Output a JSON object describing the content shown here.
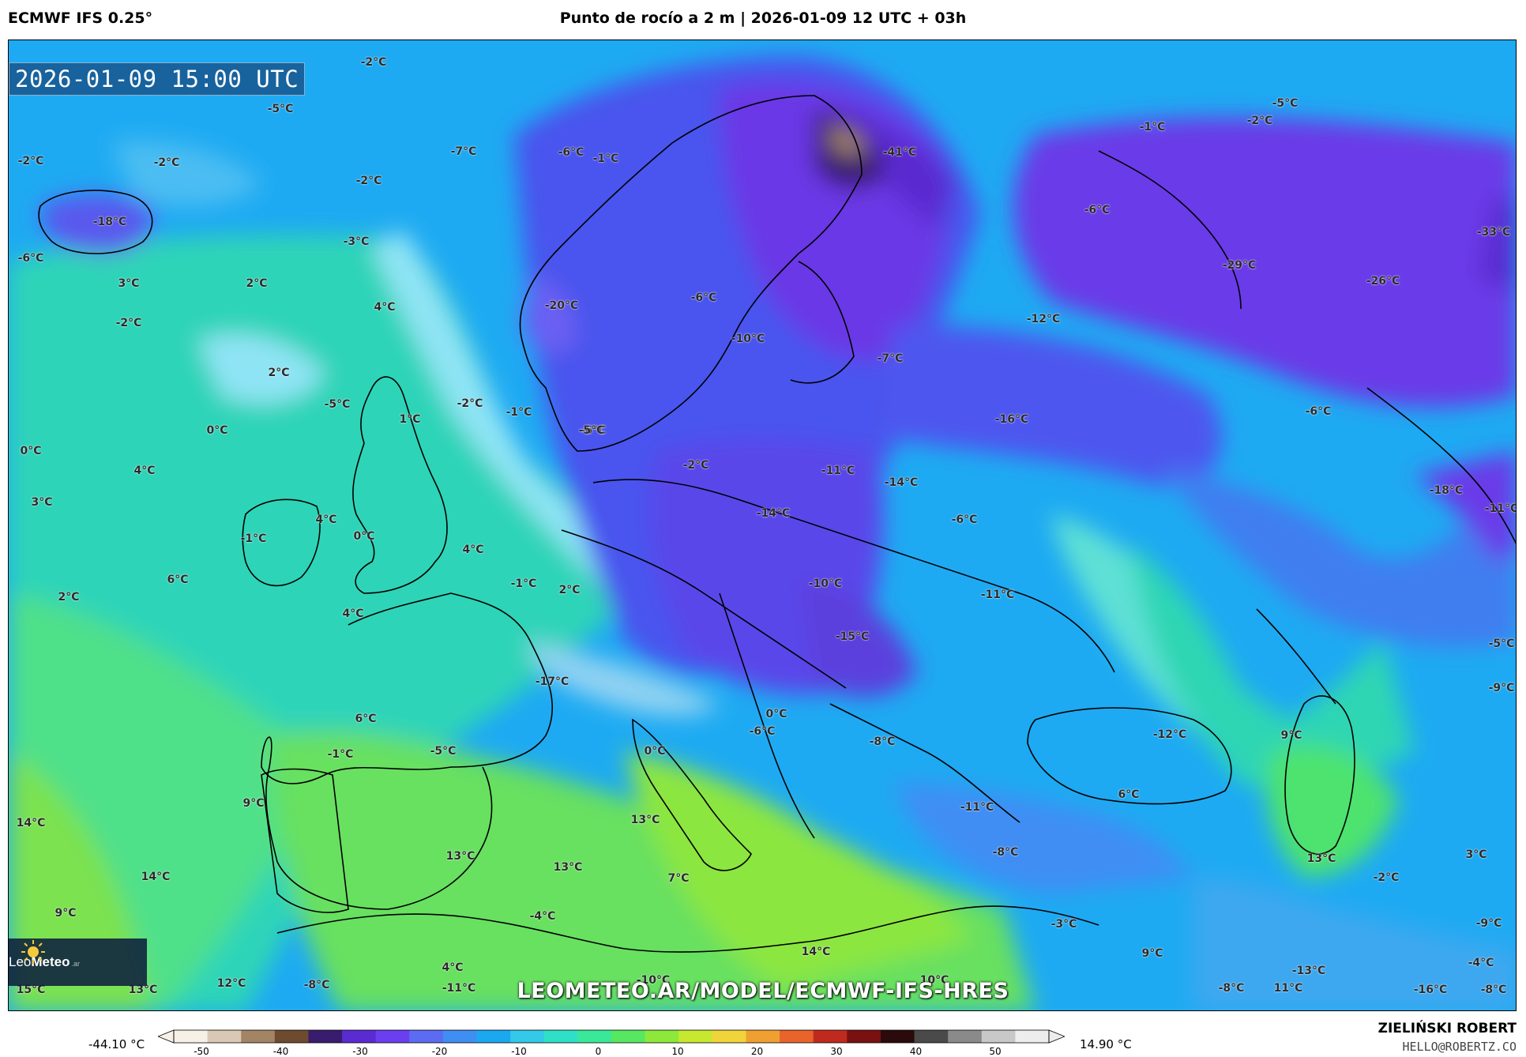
{
  "header": {
    "model": "ECMWF IFS 0.25°",
    "title": "Punto de rocío a 2 m | 2026-01-09 12 UTC + 03h"
  },
  "map": {
    "valid_time": "2026-01-09 15:00 UTC",
    "url": "LEOMETEO.AR/MODEL/ECMWF-IFS-HRES",
    "labels": [
      {
        "text": "-2°C"
      },
      {
        "text": "-5°C"
      },
      {
        "text": "-2°C"
      },
      {
        "text": "-2°C"
      },
      {
        "text": "-18°C"
      },
      {
        "text": "-6°C"
      },
      {
        "text": "-2°C"
      },
      {
        "text": "-3°C"
      },
      {
        "text": "-7°C"
      },
      {
        "text": "-6°C"
      },
      {
        "text": "-1°C"
      },
      {
        "text": "-41°C"
      },
      {
        "text": "-1°C"
      },
      {
        "text": "-2°C"
      },
      {
        "text": "-5°C"
      },
      {
        "text": "-6°C"
      },
      {
        "text": "-33°C"
      },
      {
        "text": "-29°C"
      },
      {
        "text": "-26°C"
      },
      {
        "text": "-12°C"
      },
      {
        "text": "3°C"
      },
      {
        "text": "2°C"
      },
      {
        "text": "4°C"
      },
      {
        "text": "-2°C"
      },
      {
        "text": "-20°C"
      },
      {
        "text": "-6°C"
      },
      {
        "text": "-10°C"
      },
      {
        "text": "-7°C"
      },
      {
        "text": "2°C"
      },
      {
        "text": "-5°C"
      },
      {
        "text": "1°C"
      },
      {
        "text": "-2°C"
      },
      {
        "text": "-1°C"
      },
      {
        "text": "-6°C"
      },
      {
        "text": "-16°C"
      },
      {
        "text": "-6°C"
      },
      {
        "text": "0°C"
      },
      {
        "text": "0°C"
      },
      {
        "text": "-5°C"
      },
      {
        "text": "-2°C"
      },
      {
        "text": "-11°C"
      },
      {
        "text": "-14°C"
      },
      {
        "text": "4°C"
      },
      {
        "text": "3°C"
      },
      {
        "text": "4°C"
      },
      {
        "text": "-1°C"
      },
      {
        "text": "0°C"
      },
      {
        "text": "-14°C"
      },
      {
        "text": "-6°C"
      },
      {
        "text": "-18°C"
      },
      {
        "text": "-11°C"
      },
      {
        "text": "4°C"
      },
      {
        "text": "6°C"
      },
      {
        "text": "2°C"
      },
      {
        "text": "-1°C"
      },
      {
        "text": "2°C"
      },
      {
        "text": "-10°C"
      },
      {
        "text": "-11°C"
      },
      {
        "text": "4°C"
      },
      {
        "text": "-15°C"
      },
      {
        "text": "-5°C"
      },
      {
        "text": "-17°C"
      },
      {
        "text": "-9°C"
      },
      {
        "text": "6°C"
      },
      {
        "text": "0°C"
      },
      {
        "text": "-6°C"
      },
      {
        "text": "-8°C"
      },
      {
        "text": "-12°C"
      },
      {
        "text": "9°C"
      },
      {
        "text": "-1°C"
      },
      {
        "text": "-5°C"
      },
      {
        "text": "0°C"
      },
      {
        "text": "6°C"
      },
      {
        "text": "9°C"
      },
      {
        "text": "14°C"
      },
      {
        "text": "-11°C"
      },
      {
        "text": "13°C"
      },
      {
        "text": "13°C"
      },
      {
        "text": "-8°C"
      },
      {
        "text": "13°C"
      },
      {
        "text": "3°C"
      },
      {
        "text": "14°C"
      },
      {
        "text": "13°C"
      },
      {
        "text": "7°C"
      },
      {
        "text": "-2°C"
      },
      {
        "text": "-4°C"
      },
      {
        "text": "9°C"
      },
      {
        "text": "-3°C"
      },
      {
        "text": "-9°C"
      },
      {
        "text": "14°C"
      },
      {
        "text": "9°C"
      },
      {
        "text": "-4°C"
      },
      {
        "text": "12°C"
      },
      {
        "text": "4°C"
      },
      {
        "text": "-10°C"
      },
      {
        "text": "10°C"
      },
      {
        "text": "-13°C"
      },
      {
        "text": "15°C"
      },
      {
        "text": "13°C"
      },
      {
        "text": "-8°C"
      },
      {
        "text": "-11°C"
      },
      {
        "text": "-8°C"
      },
      {
        "text": "11°C"
      },
      {
        "text": "-16°C"
      },
      {
        "text": "-8°C"
      }
    ]
  },
  "logo": {
    "brand_light": "Leo",
    "brand_bold": "Meteo",
    "tld": ".ar"
  },
  "colorbar": {
    "min_label": "-44.10 °C",
    "max_label": "14.90 °C",
    "ticks": [
      "-50",
      "-40",
      "-30",
      "-20",
      "-10",
      "0",
      "10",
      "20",
      "30",
      "40",
      "50"
    ],
    "colors": [
      "#f6f0e6",
      "#d9c9b4",
      "#a38566",
      "#6e4a2e",
      "#3a1c6e",
      "#5a2bd0",
      "#6b3ff0",
      "#5b6cf2",
      "#3f8ef4",
      "#1aa9f0",
      "#33c9e8",
      "#2fe0c8",
      "#3ae89a",
      "#55e860",
      "#8de83a",
      "#c8e830",
      "#f0d43a",
      "#f0a030",
      "#e8642a",
      "#c02a1e",
      "#7a1010",
      "#2a0a0a",
      "#4a4a4a",
      "#8a8a8a",
      "#c8c8c8",
      "#ededed"
    ]
  },
  "footer": {
    "author": "ZIELIŃSKI ROBERT",
    "email": "HELLO@ROBERTZ.CO"
  }
}
